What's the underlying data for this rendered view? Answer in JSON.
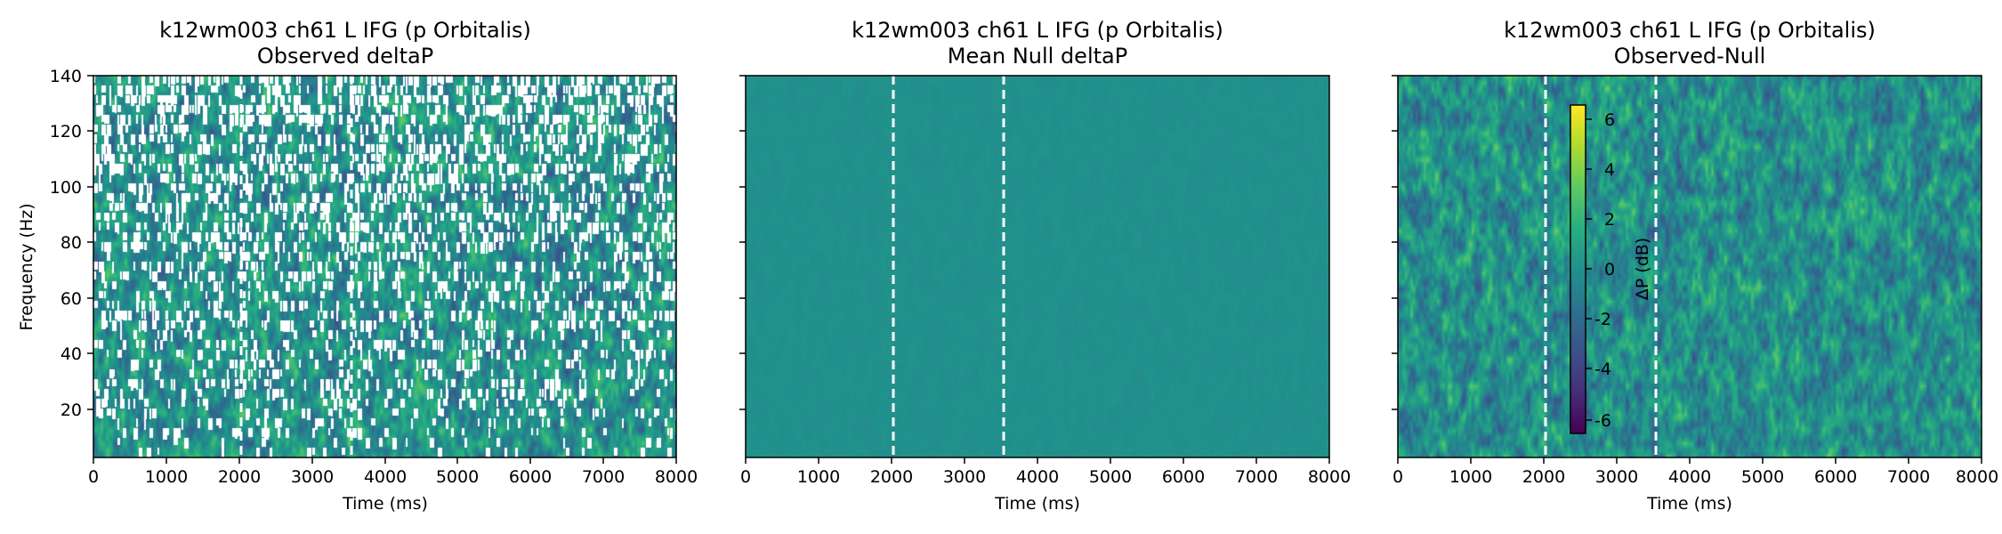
{
  "chart_data": [
    {
      "type": "heatmap",
      "title_line1": "k12wm003 ch61 L IFG (p Orbitalis)",
      "title_line2": "Observed deltaP",
      "xlabel": "Time (ms)",
      "ylabel": "Frequency (Hz)",
      "xlim": [
        0,
        8000
      ],
      "ylim": [
        2,
        140
      ],
      "xticks": [
        "0",
        "1000",
        "2000",
        "3000",
        "4000",
        "5000",
        "6000",
        "7000",
        "8000"
      ],
      "yticks": [
        "20",
        "40",
        "60",
        "80",
        "100",
        "120",
        "140"
      ],
      "event_lines_ms": [
        2030,
        3540
      ],
      "masked": true
    },
    {
      "type": "heatmap",
      "title_line1": "k12wm003 ch61 L IFG (p Orbitalis)",
      "title_line2": "Mean Null deltaP",
      "xlabel": "Time (ms)",
      "ylabel": "",
      "xlim": [
        0,
        8000
      ],
      "ylim": [
        2,
        140
      ],
      "xticks": [
        "0",
        "1000",
        "2000",
        "3000",
        "4000",
        "5000",
        "6000",
        "7000",
        "8000"
      ],
      "yticks": [
        "20",
        "40",
        "60",
        "80",
        "100",
        "120",
        "140"
      ],
      "event_lines_ms": [
        2030,
        3540
      ],
      "masked": false
    },
    {
      "type": "heatmap",
      "title_line1": "k12wm003 ch61 L IFG (p Orbitalis)",
      "title_line2": "Observed-Null",
      "xlabel": "Time (ms)",
      "ylabel": "",
      "xlim": [
        0,
        8000
      ],
      "ylim": [
        2,
        140
      ],
      "xticks": [
        "0",
        "1000",
        "2000",
        "3000",
        "4000",
        "5000",
        "6000",
        "7000",
        "8000"
      ],
      "yticks": [
        "20",
        "40",
        "60",
        "80",
        "100",
        "120",
        "140"
      ],
      "event_lines_ms": [
        2030,
        3540
      ],
      "masked": false,
      "colorbar": {
        "label": "ΔP (dB)",
        "range": [
          -6.7,
          6.7
        ],
        "ticks": [
          "-6",
          "-4",
          "-2",
          "0",
          "2",
          "4",
          "6"
        ],
        "colormap": "viridis"
      }
    }
  ]
}
